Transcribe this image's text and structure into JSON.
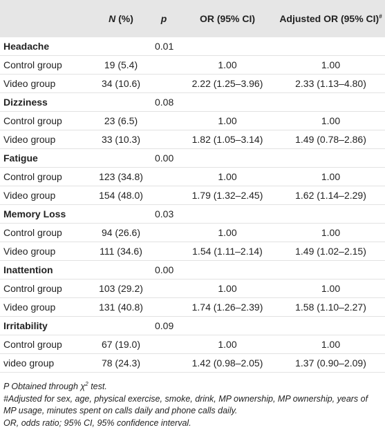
{
  "header": {
    "n_italic": "N",
    "n_rest": "(%)",
    "p": "p",
    "or": "OR (95% CI)",
    "adj": "Adjusted OR (95% CI)",
    "adj_sup": "#"
  },
  "groups": [
    {
      "name": "Headache",
      "p": "0.01",
      "rows": [
        [
          "Control group",
          "19 (5.4)",
          "1.00",
          "1.00"
        ],
        [
          "Video group",
          "34 (10.6)",
          "2.22 (1.25–3.96)",
          "2.33 (1.13–4.80)"
        ]
      ]
    },
    {
      "name": "Dizziness",
      "p": "0.08",
      "rows": [
        [
          "Control group",
          "23 (6.5)",
          "1.00",
          "1.00"
        ],
        [
          "Video group",
          "33 (10.3)",
          "1.82 (1.05–3.14)",
          "1.49 (0.78–2.86)"
        ]
      ]
    },
    {
      "name": "Fatigue",
      "p": "0.00",
      "rows": [
        [
          "Control group",
          "123 (34.8)",
          "1.00",
          "1.00"
        ],
        [
          "Video group",
          "154 (48.0)",
          "1.79 (1.32–2.45)",
          "1.62 (1.14–2.29)"
        ]
      ]
    },
    {
      "name": "Memory Loss",
      "p": "0.03",
      "rows": [
        [
          "Control group",
          "94 (26.6)",
          "1.00",
          "1.00"
        ],
        [
          "Video group",
          "111 (34.6)",
          "1.54 (1.11–2.14)",
          "1.49 (1.02–2.15)"
        ]
      ]
    },
    {
      "name": "Inattention",
      "p": "0.00",
      "rows": [
        [
          "Control group",
          "103 (29.2)",
          "1.00",
          "1.00"
        ],
        [
          "Video group",
          "131 (40.8)",
          "1.74 (1.26–2.39)",
          "1.58 (1.10–2.27)"
        ]
      ]
    },
    {
      "name": "Irritability",
      "p": "0.09",
      "rows": [
        [
          "Control group",
          "67 (19.0)",
          "1.00",
          "1.00"
        ],
        [
          "video group",
          "78 (24.3)",
          "1.42 (0.98–2.05)",
          "1.37 (0.90–2.09)"
        ]
      ]
    }
  ],
  "notes": {
    "chi": {
      "text": "P Obtained through χ",
      "sup": "2",
      "tail": "test."
    },
    "adjusted": "#Adjusted for sex, age, physical exercise, smoke, drink, MP ownership, MP ownership, years of MP usage, minutes spent on calls daily and phone calls daily.",
    "abbrev": "OR, odds ratio; 95% CI, 95% confidence interval."
  }
}
